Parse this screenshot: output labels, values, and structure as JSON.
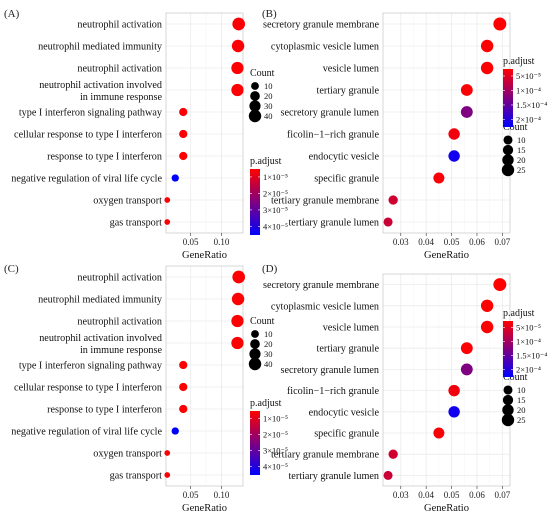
{
  "chart_data": [
    {
      "panel": "(A)",
      "type": "scatter",
      "xlabel": "GeneRatio",
      "xticks": [
        0.05,
        0.1
      ],
      "xlim": [
        0.01,
        0.135
      ],
      "categories": [
        "neutrophil activation",
        "neutrophil mediated immunity",
        "neutrophil activation",
        "neutrophil activation involved\nin immune response",
        "type I interferon signaling pathway",
        "cellular response to type I interferon",
        "response to type I interferon",
        "negative regulation of viral life cycle",
        "oxygen transport",
        "gas transport"
      ],
      "x": [
        0.128,
        0.127,
        0.126,
        0.126,
        0.038,
        0.038,
        0.038,
        0.025,
        0.012,
        0.012
      ],
      "count": [
        42,
        40,
        39,
        39,
        12,
        12,
        12,
        8,
        3,
        3
      ],
      "p_adjust": [
        1e-06,
        1e-06,
        1e-06,
        1e-06,
        1e-06,
        1e-06,
        1e-06,
        4.5e-05,
        1e-06,
        1e-06
      ],
      "size_legend": {
        "title": "Count",
        "values": [
          10,
          20,
          30,
          40
        ],
        "labels": [
          "10",
          "20",
          "30",
          "40"
        ]
      },
      "color_legend": {
        "title": "p.adjust",
        "labels": [
          "1×10⁻⁵",
          "2×10⁻⁵",
          "3×10⁻⁵",
          "4×10⁻⁵"
        ],
        "min": 5e-07,
        "max": 4.5e-05,
        "low_color": "#ff0000",
        "high_color": "#0000ff"
      }
    },
    {
      "panel": "(B)",
      "type": "scatter",
      "xlabel": "GeneRatio",
      "xticks": [
        0.03,
        0.04,
        0.05,
        0.06,
        0.07
      ],
      "xlim": [
        0.023,
        0.073
      ],
      "categories": [
        "secretory granule membrane",
        "cytoplasmic vesicle lumen",
        "vesicle lumen",
        "tertiary granule",
        "secretory granule lumen",
        "ficolin−1−rich granule",
        "endocytic vesicle",
        "specific granule",
        "tertiary granule membrane",
        "tertiary granule lumen"
      ],
      "x": [
        0.069,
        0.064,
        0.064,
        0.056,
        0.056,
        0.051,
        0.051,
        0.045,
        0.027,
        0.025
      ],
      "count": [
        28,
        25,
        25,
        22,
        22,
        20,
        20,
        18,
        11,
        10
      ],
      "p_adjust": [
        1e-06,
        2e-06,
        2e-06,
        4e-06,
        0.000118,
        1.2e-05,
        0.00022,
        5e-06,
        4.5e-05,
        5e-05
      ],
      "size_legend": {
        "title": "Count",
        "values": [
          10,
          15,
          20,
          25
        ],
        "labels": [
          "10",
          "15",
          "20",
          "25"
        ]
      },
      "color_legend": {
        "title": "p.adjust",
        "labels": [
          "5×10⁻⁵",
          "1×10⁻⁴",
          "1.5×10⁻⁴",
          "2×10⁻⁴"
        ],
        "min": 5e-07,
        "max": 0.000235,
        "low_color": "#ff0000",
        "high_color": "#0000ff"
      }
    },
    {
      "panel": "(C)",
      "type": "scatter",
      "xlabel": "GeneRatio",
      "xticks": [
        0.05,
        0.1
      ],
      "xlim": [
        0.01,
        0.135
      ],
      "categories": [
        "neutrophil activation",
        "neutrophil mediated immunity",
        "neutrophil activation",
        "neutrophil activation involved\nin immune response",
        "type I interferon signaling pathway",
        "cellular response to type I interferon",
        "response to type I interferon",
        "negative regulation of viral life cycle",
        "oxygen transport",
        "gas transport"
      ],
      "x": [
        0.128,
        0.127,
        0.126,
        0.126,
        0.038,
        0.038,
        0.038,
        0.025,
        0.012,
        0.012
      ],
      "count": [
        42,
        40,
        39,
        39,
        12,
        12,
        12,
        8,
        3,
        3
      ],
      "p_adjust": [
        1e-06,
        1e-06,
        1e-06,
        1e-06,
        1e-06,
        1e-06,
        1e-06,
        4.5e-05,
        1e-06,
        1e-06
      ],
      "size_legend": {
        "title": "Count",
        "values": [
          10,
          20,
          30,
          40
        ],
        "labels": [
          "10",
          "20",
          "30",
          "40"
        ]
      },
      "color_legend": {
        "title": "p.adjust",
        "labels": [
          "1×10⁻⁵",
          "2×10⁻⁵",
          "3×10⁻⁵",
          "4×10⁻⁵"
        ],
        "min": 5e-07,
        "max": 4.5e-05,
        "low_color": "#ff0000",
        "high_color": "#0000ff"
      }
    },
    {
      "panel": "(D)",
      "type": "scatter",
      "xlabel": "GeneRatio",
      "xticks": [
        0.03,
        0.04,
        0.05,
        0.06,
        0.07
      ],
      "xlim": [
        0.023,
        0.073
      ],
      "categories": [
        "secretory granule membrane",
        "cytoplasmic vesicle lumen",
        "vesicle lumen",
        "tertiary granule",
        "secretory granule lumen",
        "ficolin−1−rich granule",
        "endocytic vesicle",
        "specific granule",
        "tertiary granule membrane",
        "tertiary granule lumen"
      ],
      "x": [
        0.069,
        0.064,
        0.064,
        0.056,
        0.056,
        0.051,
        0.051,
        0.045,
        0.027,
        0.025
      ],
      "count": [
        28,
        25,
        25,
        22,
        22,
        20,
        20,
        18,
        11,
        10
      ],
      "p_adjust": [
        1e-06,
        2e-06,
        2e-06,
        4e-06,
        0.000118,
        1.2e-05,
        0.00022,
        5e-06,
        4.5e-05,
        5e-05
      ],
      "size_legend": {
        "title": "Count",
        "values": [
          10,
          15,
          20,
          25
        ],
        "labels": [
          "10",
          "15",
          "20",
          "25"
        ]
      },
      "color_legend": {
        "title": "p.adjust",
        "labels": [
          "5×10⁻⁵",
          "1×10⁻⁴",
          "1.5×10⁻⁴",
          "2×10⁻⁴"
        ],
        "min": 5e-07,
        "max": 0.000235,
        "low_color": "#ff0000",
        "high_color": "#0000ff"
      }
    }
  ]
}
